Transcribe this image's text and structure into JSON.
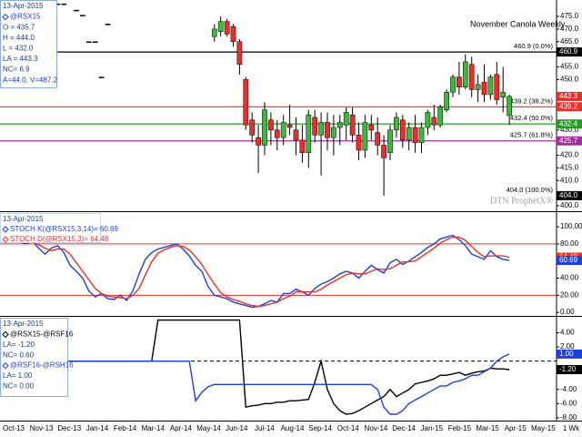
{
  "chart_data": [
    {
      "type": "candlestick",
      "title": "November Canola Weekly",
      "watermark": "DTN ProphetX®",
      "info": [
        "13-Apr-2015",
        "@RSX15",
        "O = 435.7",
        "H = 444.0",
        "L = 432.0",
        "LA = 443.3",
        "NC= 6.9",
        "A=44.0, V=487.2"
      ],
      "ylim": [
        400,
        481.5
      ],
      "yticks": [
        {
          "value": 400,
          "label": "400.0"
        },
        {
          "value": 410,
          "label": "410.0"
        },
        {
          "value": 415,
          "label": "415.0"
        },
        {
          "value": 420,
          "label": "420.0"
        },
        {
          "value": 430,
          "label": "430.0"
        },
        {
          "value": 450,
          "label": "450.0"
        },
        {
          "value": 455,
          "label": "455.0"
        },
        {
          "value": 465,
          "label": "465.0"
        },
        {
          "value": 470,
          "label": "470.0"
        },
        {
          "value": 475,
          "label": "475.0"
        }
      ],
      "levels": [
        {
          "value": 460.9,
          "label": "460.9 (0.0%)",
          "tag": "460.9",
          "color": "#000000"
        },
        {
          "value": 439.2,
          "label": "439.2 (38.2%)",
          "tag": "439.2",
          "color": "#e8302a"
        },
        {
          "value": 432.4,
          "label": "432.4 (50.0%)",
          "tag": "432.4",
          "color": "#2a9a2a"
        },
        {
          "value": 425.7,
          "label": "425.7 (61.8%)",
          "tag": "425.7",
          "color": "#a0309a"
        },
        {
          "value": 404.0,
          "label": "404.0 (100.0%)",
          "tag": "404.0"
        }
      ],
      "tags": [
        {
          "value": 443.3,
          "label": "443.3",
          "color": "#e8302a"
        }
      ],
      "up_color": "#3cb83c",
      "down_color": "#e8302a",
      "flat_color": "#000000",
      "open": [
        null,
        null,
        null,
        null,
        null,
        null,
        null,
        480,
        480,
        null,
        477.5,
        475.5,
        465,
        465,
        451,
        472,
        null,
        null,
        null,
        null,
        null,
        null,
        null,
        null,
        null,
        null,
        null,
        null,
        null,
        null,
        null,
        null,
        467,
        469,
        473,
        471,
        465,
        450,
        434,
        427,
        424,
        434,
        430,
        427,
        432,
        430,
        426,
        421,
        435,
        428,
        433,
        427,
        431,
        432,
        436,
        428,
        422,
        432,
        429,
        424,
        421,
        430,
        434,
        426,
        431,
        425,
        431,
        435,
        432,
        438,
        445,
        451,
        447,
        456,
        446,
        449,
        444,
        452,
        443,
        435.7
      ],
      "high": [
        null,
        null,
        null,
        null,
        null,
        null,
        null,
        480,
        480,
        null,
        477.5,
        475.5,
        465,
        465,
        451,
        472,
        null,
        null,
        null,
        null,
        null,
        null,
        null,
        null,
        null,
        null,
        null,
        null,
        null,
        null,
        null,
        null,
        472,
        475,
        474,
        472,
        466,
        451,
        437,
        432,
        441,
        437,
        434,
        436,
        440,
        435,
        432,
        438,
        438,
        437,
        437,
        436,
        436,
        439,
        439,
        433,
        436,
        436,
        435,
        428,
        432,
        437,
        436,
        433,
        436,
        433,
        438,
        440,
        440,
        446,
        452,
        457,
        460,
        459,
        452,
        456,
        452,
        457,
        455,
        444
      ],
      "low": [
        null,
        null,
        null,
        null,
        null,
        null,
        null,
        480,
        480,
        null,
        477.5,
        475.5,
        465,
        465,
        451,
        472,
        null,
        null,
        null,
        null,
        null,
        null,
        null,
        null,
        null,
        null,
        null,
        null,
        null,
        null,
        null,
        null,
        465,
        467,
        467,
        463,
        452,
        430,
        425,
        413,
        420,
        424,
        422,
        424,
        428,
        420,
        417,
        415,
        425,
        412,
        422,
        420,
        424,
        426,
        425,
        418,
        419,
        426,
        420,
        404,
        418,
        427,
        423,
        422,
        421,
        421,
        428,
        430,
        431,
        437,
        443,
        444,
        446,
        443,
        441,
        441,
        442,
        440,
        437,
        432
      ],
      "close": [
        null,
        null,
        null,
        null,
        null,
        null,
        null,
        480,
        480,
        null,
        477.5,
        475.5,
        465,
        465,
        451,
        472,
        null,
        null,
        null,
        null,
        null,
        null,
        null,
        null,
        null,
        null,
        null,
        null,
        null,
        null,
        null,
        null,
        470,
        473,
        468,
        465,
        456,
        432,
        428,
        424,
        438,
        430,
        427,
        433,
        431,
        426,
        421,
        436,
        428,
        433,
        427,
        431,
        433,
        437,
        428,
        422,
        433,
        430,
        424,
        419,
        430,
        435,
        426,
        431,
        425,
        431,
        437,
        432,
        439,
        445,
        451,
        447,
        457,
        446,
        448,
        444,
        451,
        442,
        445,
        443.3
      ]
    },
    {
      "type": "line",
      "info": [
        "13-Apr-2015"
      ],
      "ylim": [
        -2,
        115
      ],
      "yticks": [
        {
          "value": 0,
          "label": "0.00"
        },
        {
          "value": 20,
          "label": "20.00"
        },
        {
          "value": 40,
          "label": "40.00"
        },
        {
          "value": 80,
          "label": "80.00"
        },
        {
          "value": 100,
          "label": "100.00"
        }
      ],
      "hlines": [
        {
          "value": 80,
          "color": "#e8302a"
        },
        {
          "value": 20,
          "color": "#e8302a"
        }
      ],
      "tags": [
        {
          "value": 64.48,
          "label": "64.48",
          "color": "#e8302a"
        },
        {
          "value": 60.69,
          "label": "60.69",
          "color": "#1f3fd8"
        }
      ],
      "series": [
        {
          "name": "STOCH K(@RSX15,3,14)= 60.69",
          "color": "#1f3fd8",
          "values": [
            85,
            82,
            80,
            83,
            75,
            68,
            75,
            78,
            70,
            55,
            48,
            40,
            25,
            18,
            22,
            16,
            15,
            20,
            14,
            25,
            45,
            62,
            70,
            74,
            76,
            78,
            80,
            74,
            66,
            55,
            48,
            30,
            20,
            18,
            16,
            12,
            10,
            8,
            6,
            7,
            10,
            14,
            12,
            22,
            22,
            27,
            24,
            20,
            28,
            33,
            36,
            40,
            45,
            48,
            46,
            40,
            48,
            55,
            50,
            46,
            58,
            62,
            56,
            60,
            65,
            70,
            76,
            80,
            86,
            88,
            90,
            85,
            78,
            68,
            65,
            62,
            72,
            65,
            62,
            60.69
          ]
        },
        {
          "name": "STOCH D(@RSX15,3)= 64.48",
          "color": "#e8302a",
          "values": [
            84,
            83,
            82,
            82,
            79,
            75,
            72,
            74,
            74,
            68,
            58,
            48,
            38,
            28,
            22,
            19,
            18,
            17,
            16,
            20,
            28,
            44,
            59,
            69,
            73,
            76,
            78,
            77,
            73,
            65,
            56,
            44,
            33,
            23,
            18,
            15,
            13,
            10,
            8,
            7,
            8,
            10,
            12,
            16,
            19,
            24,
            24,
            24,
            24,
            27,
            32,
            36,
            40,
            44,
            46,
            45,
            45,
            48,
            51,
            50,
            51,
            55,
            59,
            59,
            60,
            65,
            70,
            75,
            81,
            85,
            88,
            88,
            84,
            77,
            70,
            65,
            66,
            66,
            66,
            64.48
          ]
        }
      ]
    },
    {
      "type": "line",
      "info": [
        "13-Apr-2015"
      ],
      "ylim": [
        -8.4,
        6
      ],
      "yticks": [
        {
          "value": 4,
          "label": "4.00"
        },
        {
          "value": 2,
          "label": "2.00"
        },
        {
          "value": -4,
          "label": "-4.00"
        },
        {
          "value": -6,
          "label": "-6.00"
        },
        {
          "value": -8,
          "label": "-8.00"
        }
      ],
      "hlines": [
        {
          "value": 0,
          "color": "#000000",
          "dash": true
        }
      ],
      "tags": [
        {
          "value": 1.0,
          "label": "1.00",
          "color": "#1f3fd8"
        },
        {
          "value": -1.2,
          "label": "-1.20",
          "color": "#000000"
        }
      ],
      "x_axis_labels": [
        "Oct-13",
        "Nov-13",
        "Dec-13",
        "Jan-14",
        "Feb-14",
        "Mar-14",
        "Apr-14",
        "May-14",
        "Jun-14",
        "Jul-14",
        "Aug-14",
        "Sep-14",
        "Oct-14",
        "Nov-14",
        "Dec-14",
        "Jan-15",
        "Feb-15",
        "Mar-15",
        "Apr-15",
        "May-15"
      ],
      "x_axis_note": "1 Wk",
      "series": [
        {
          "name": "@RSX15-@RSF16",
          "color": "#000000",
          "info": [
            "LA= -1.20",
            "NC= 0.60"
          ],
          "values": [
            0,
            0,
            0,
            0,
            0,
            0,
            0,
            0,
            0,
            0,
            0,
            0,
            0,
            0,
            0,
            0,
            0,
            0,
            0,
            0,
            0,
            0,
            0,
            5.8,
            5.8,
            5.8,
            5.8,
            5.8,
            5.8,
            5.8,
            5.8,
            5.8,
            5.8,
            5.8,
            5.8,
            5.8,
            5.8,
            -6.5,
            -6.3,
            -6.2,
            -6,
            -6,
            -5.8,
            -5.8,
            -5.6,
            -5.6,
            -5.5,
            -5.4,
            -3,
            0,
            -4,
            -6,
            -7,
            -7.5,
            -7.4,
            -7,
            -6.5,
            -6,
            -5.5,
            -5,
            -4,
            -5,
            -4.5,
            -4,
            -3.2,
            -3,
            -2.8,
            -2.5,
            -2,
            -2,
            -1.8,
            -1.6,
            -2,
            -1.7,
            -1.5,
            -1.4,
            -1,
            -1.1,
            -1.1,
            -1.2
          ]
        },
        {
          "name": "@RSF16-@RSH16",
          "color": "#1f3fd8",
          "info": [
            "LA= 1.00",
            "NC= 0.00"
          ],
          "values": [
            0,
            0,
            0,
            0,
            0,
            0,
            0,
            0,
            0,
            0,
            0,
            0,
            0,
            0,
            0,
            0,
            0,
            0,
            0,
            0,
            0,
            0,
            0,
            0,
            0,
            0,
            0,
            0,
            0,
            -5.6,
            -4.4,
            -3.6,
            -3.3,
            -3.3,
            -3.3,
            -3.3,
            -3.3,
            -3.3,
            -3.3,
            -3.3,
            -3.3,
            -3.3,
            -3.3,
            -3.3,
            -3.3,
            -3.3,
            -3.3,
            -3.3,
            -3.3,
            -3.3,
            -3.3,
            -3.3,
            -3.3,
            -3.3,
            -3.3,
            -3.3,
            -3.3,
            -3.3,
            -4,
            -6.5,
            -7.5,
            -7.5,
            -7,
            -6,
            -5.5,
            -5,
            -4.5,
            -4,
            -3.5,
            -3.5,
            -3,
            -2.8,
            -2.5,
            -2,
            -2,
            -1.5,
            -1,
            0,
            0.6,
            1.0
          ]
        }
      ]
    }
  ]
}
